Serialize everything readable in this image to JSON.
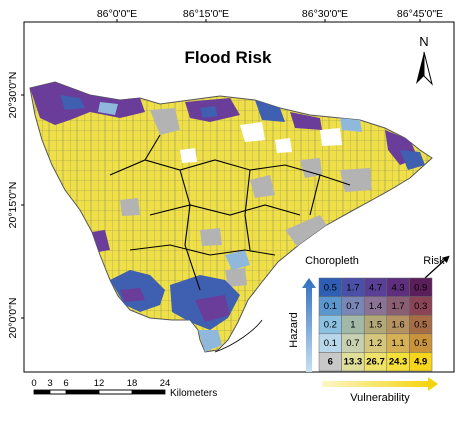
{
  "map": {
    "title": "Flood Risk",
    "lon_ticks": [
      "86°0'0\"E",
      "86°15'0\"E",
      "86°30'0\"E",
      "86°45'0\"E"
    ],
    "lat_ticks": [
      "20°30'0\"N",
      "20°15'0\"N",
      "20°0'0\"N"
    ],
    "north_label": "N",
    "colors": {
      "yellow": "#efe04a",
      "purple": "#6a3d9a",
      "blue": "#3f5fb0",
      "light_blue": "#8fb8dc",
      "grey": "#b3b3b3",
      "boundary": "#000000"
    }
  },
  "scalebar": {
    "ticks": [
      "0",
      "3",
      "6",
      "12",
      "18",
      "24"
    ],
    "unit": "Kilometers"
  },
  "legend": {
    "title": "Choropleth",
    "risk_label": "Risk",
    "hazard_label": "Hazard",
    "vulnerability_label": "Vulnerability",
    "rows": [
      [
        "0.5",
        "1.7",
        "4.7",
        "4.3",
        "0.9"
      ],
      [
        "0.1",
        "0.7",
        "1.4",
        "1.7",
        "0.3"
      ],
      [
        "0.2",
        "1",
        "1.5",
        "1.6",
        "0.5"
      ],
      [
        "0.1",
        "0.7",
        "1.2",
        "1.1",
        "0.5"
      ],
      [
        "6",
        "13.3",
        "26.7",
        "24.3",
        "4.9"
      ]
    ],
    "colors": [
      [
        "#2f5fb5",
        "#4b4fa6",
        "#5a3f97",
        "#5e2f7d",
        "#5a1e5a"
      ],
      [
        "#5b97cf",
        "#7a86b6",
        "#8a7394",
        "#8a5e73",
        "#8a4455"
      ],
      [
        "#8dc1e2",
        "#a3b9a8",
        "#b3a978",
        "#b59262",
        "#a66c46"
      ],
      [
        "#b9d7ea",
        "#c7d0b0",
        "#d4c67d",
        "#d5b054",
        "#c8933a"
      ],
      [
        "#c8c8c8",
        "#e0df9a",
        "#efe26a",
        "#f5e03a",
        "#f7d51a"
      ]
    ]
  }
}
